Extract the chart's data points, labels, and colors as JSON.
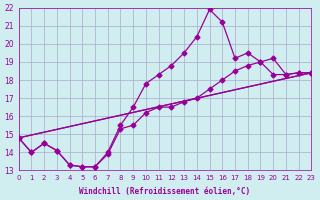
{
  "xlabel": "Windchill (Refroidissement éolien,°C)",
  "bg_color": "#d0eef0",
  "line_color": "#990099",
  "grid_color": "#aaaacc",
  "xmin": 0,
  "xmax": 23,
  "ymin": 13,
  "ymax": 22,
  "xticks": [
    0,
    1,
    2,
    3,
    4,
    5,
    6,
    7,
    8,
    9,
    10,
    11,
    12,
    13,
    14,
    15,
    16,
    17,
    18,
    19,
    20,
    21,
    22,
    23
  ],
  "yticks": [
    13,
    14,
    15,
    16,
    17,
    18,
    19,
    20,
    21,
    22
  ],
  "line1_x": [
    0,
    1,
    2,
    3,
    4,
    5,
    6,
    7,
    8,
    9,
    10,
    11,
    12,
    13,
    14,
    15,
    16,
    17,
    18,
    19,
    20,
    21,
    22,
    23
  ],
  "line1_y": [
    14.8,
    14.0,
    14.5,
    14.1,
    13.3,
    13.2,
    13.2,
    14.0,
    15.5,
    16.5,
    17.8,
    18.3,
    18.8,
    19.5,
    20.4,
    21.9,
    21.2,
    19.2,
    19.5,
    19.0,
    18.3,
    18.3,
    18.4,
    18.4
  ],
  "line2_x": [
    0,
    1,
    2,
    3,
    4,
    5,
    6,
    7,
    8,
    9,
    10,
    11,
    12,
    13,
    14,
    15,
    16,
    17,
    18,
    19,
    20,
    21,
    22,
    23
  ],
  "line2_y": [
    14.8,
    14.0,
    14.5,
    14.1,
    13.3,
    13.2,
    13.2,
    13.9,
    15.3,
    15.5,
    16.2,
    16.5,
    16.5,
    16.8,
    17.0,
    17.5,
    18.0,
    18.5,
    18.8,
    19.0,
    19.2,
    18.3,
    18.4,
    18.4
  ],
  "line3_x": [
    0,
    23
  ],
  "line3_y": [
    14.8,
    18.4
  ],
  "line4_x": [
    0,
    23
  ],
  "line4_y": [
    14.8,
    18.4
  ]
}
